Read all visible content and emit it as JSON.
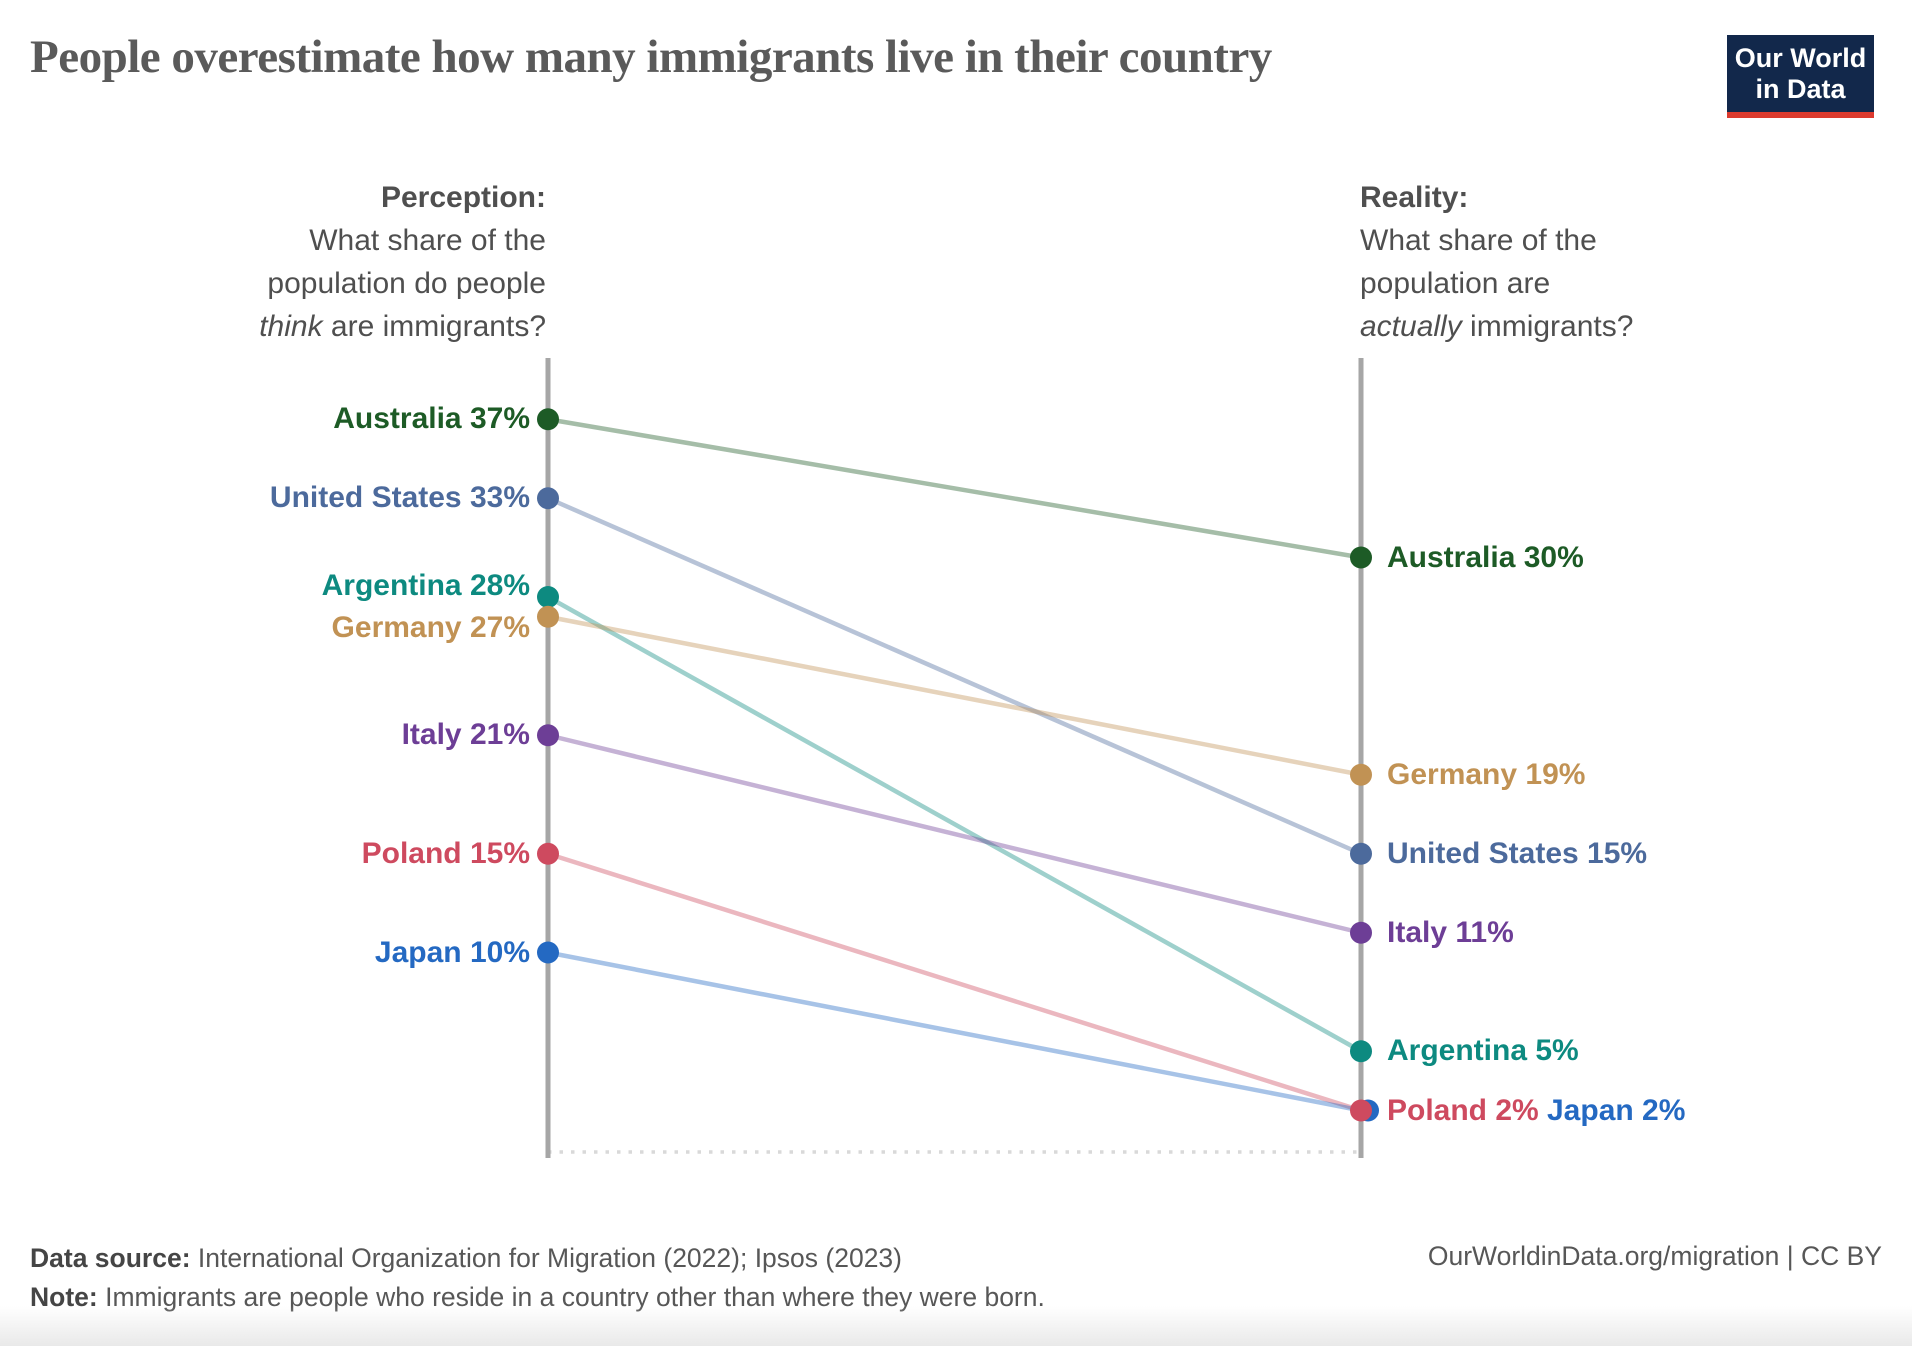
{
  "header": {
    "title": "People overestimate how many immigrants live in their country",
    "logo": {
      "line1": "Our World",
      "line2": "in Data"
    }
  },
  "panel_headings": {
    "left": {
      "title": "Perception:",
      "line2": "What share of the",
      "line3": "population do people",
      "line4_italic": "think",
      "line4_rest": " are immigrants?"
    },
    "right": {
      "title": "Reality:",
      "line2": "What share of the",
      "line3": "population are",
      "line4_italic": "actually",
      "line4_rest": " immigrants?"
    }
  },
  "chart_data": {
    "type": "slope",
    "title": "People overestimate how many immigrants live in their country",
    "columns": [
      "Perception",
      "Reality"
    ],
    "unit": "%",
    "ylim": [
      0,
      40
    ],
    "grid": false,
    "series": [
      {
        "name": "Australia",
        "color": "#1D5B26",
        "perception": 37,
        "reality": 30
      },
      {
        "name": "United States",
        "color": "#4C6A9C",
        "perception": 33,
        "reality": 15
      },
      {
        "name": "Argentina",
        "color": "#0D8A80",
        "perception": 28,
        "reality": 5
      },
      {
        "name": "Germany",
        "color": "#C19254",
        "perception": 27,
        "reality": 19
      },
      {
        "name": "Italy",
        "color": "#6D3E96",
        "perception": 21,
        "reality": 11
      },
      {
        "name": "Poland",
        "color": "#CE4A5F",
        "perception": 15,
        "reality": 2
      },
      {
        "name": "Japan",
        "color": "#2469C2",
        "perception": 10,
        "reality": 2
      }
    ]
  },
  "footer": {
    "datasource_label": "Data source:",
    "datasource_text": " International Organization for Migration (2022); Ipsos (2023)",
    "note_label": "Note:",
    "note_text": " Immigrants are people who reside in a country other than where they were born.",
    "link": "OurWorldinData.org/migration | CC BY"
  },
  "colors": {
    "title_text": "#5a5a5a",
    "heading_text": "#4f4f4f",
    "axis": "#a6a6a6",
    "dotted_baseline": "#d9d9d9",
    "logo_bg": "#12284B",
    "logo_accent": "#DC3A2E",
    "line_opacity": "0.4"
  }
}
